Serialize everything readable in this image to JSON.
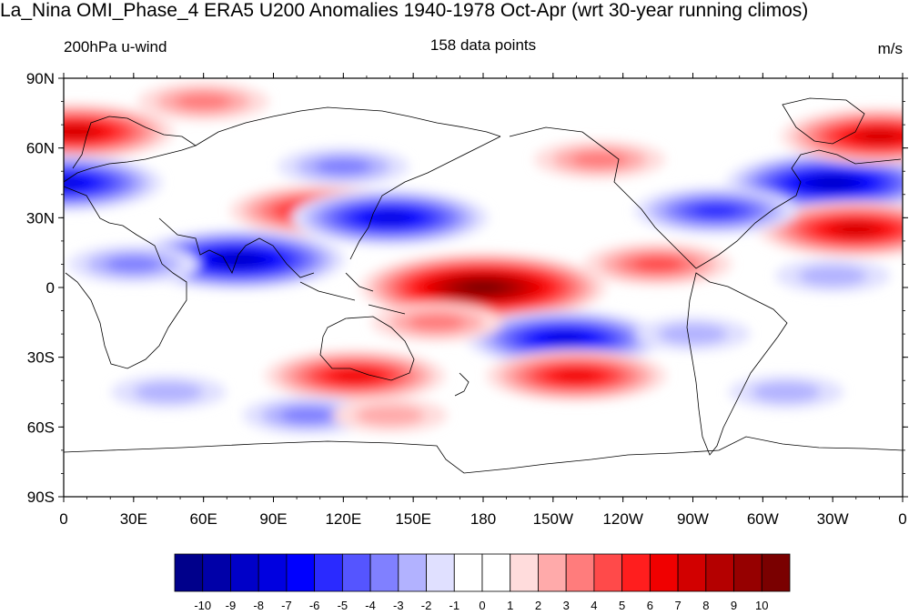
{
  "title": "La_Nina OMI_Phase_4 ERA5 U200 Anomalies 1940-1978 Oct-Apr (wrt 30-year running climos)",
  "left_label": "200hPa u-wind",
  "center_label": "158 data points",
  "units": "m/s",
  "lat_ticks": [
    "90N",
    "60N",
    "30N",
    "0",
    "30S",
    "60S",
    "90S"
  ],
  "lon_ticks": [
    "0",
    "30E",
    "60E",
    "90E",
    "120E",
    "150E",
    "180",
    "150W",
    "120W",
    "90W",
    "60W",
    "30W",
    "0"
  ],
  "colorbar": {
    "labels": [
      "-10",
      "-9",
      "-8",
      "-7",
      "-6",
      "-5",
      "-4",
      "-3",
      "-2",
      "-1",
      "0",
      "1",
      "2",
      "3",
      "4",
      "5",
      "6",
      "7",
      "8",
      "9",
      "10"
    ],
    "colors": [
      "#00008b",
      "#0000a8",
      "#0000c8",
      "#0000e0",
      "#0000ff",
      "#2a2aff",
      "#5555ff",
      "#8080ff",
      "#b2b2ff",
      "#e0e0ff",
      "#ffffff",
      "#ffffff",
      "#ffdcdc",
      "#ffaaaa",
      "#ff7c7c",
      "#ff4a4a",
      "#ff1e1e",
      "#f00000",
      "#d20000",
      "#b40000",
      "#960000",
      "#7a0000"
    ]
  },
  "anomaly_features": [
    {
      "lon": 180,
      "lat": 0,
      "value": 10
    },
    {
      "lon": 110,
      "lat": 33,
      "value": 6
    },
    {
      "lon": 125,
      "lat": -38,
      "value": 6
    },
    {
      "lon": 140,
      "lat": 30,
      "value": -7
    },
    {
      "lon": 75,
      "lat": 12,
      "value": -8
    },
    {
      "lon": -145,
      "lat": -22,
      "value": -7
    },
    {
      "lon": -30,
      "lat": 45,
      "value": -8
    },
    {
      "lon": -20,
      "lat": 25,
      "value": 7
    },
    {
      "lon": -10,
      "lat": 65,
      "value": 7
    },
    {
      "lon": 5,
      "lat": 67,
      "value": 7
    },
    {
      "lon": -140,
      "lat": -38,
      "value": 6
    },
    {
      "lon": 0,
      "lat": 45,
      "value": -7
    },
    {
      "lon": -105,
      "lat": 10,
      "value": 4
    },
    {
      "lon": -80,
      "lat": 33,
      "value": -5
    },
    {
      "lon": 120,
      "lat": 52,
      "value": -3
    },
    {
      "lon": 105,
      "lat": -55,
      "value": -3
    },
    {
      "lon": 45,
      "lat": -45,
      "value": -2
    },
    {
      "lon": -50,
      "lat": -45,
      "value": -2
    },
    {
      "lon": -130,
      "lat": 55,
      "value": 3
    },
    {
      "lon": 60,
      "lat": 80,
      "value": 3
    },
    {
      "lon": 30,
      "lat": 10,
      "value": -3
    },
    {
      "lon": -90,
      "lat": -20,
      "value": -2
    },
    {
      "lon": 160,
      "lat": -15,
      "value": 3
    },
    {
      "lon": 140,
      "lat": -55,
      "value": 2
    },
    {
      "lon": -30,
      "lat": 5,
      "value": -2
    }
  ]
}
